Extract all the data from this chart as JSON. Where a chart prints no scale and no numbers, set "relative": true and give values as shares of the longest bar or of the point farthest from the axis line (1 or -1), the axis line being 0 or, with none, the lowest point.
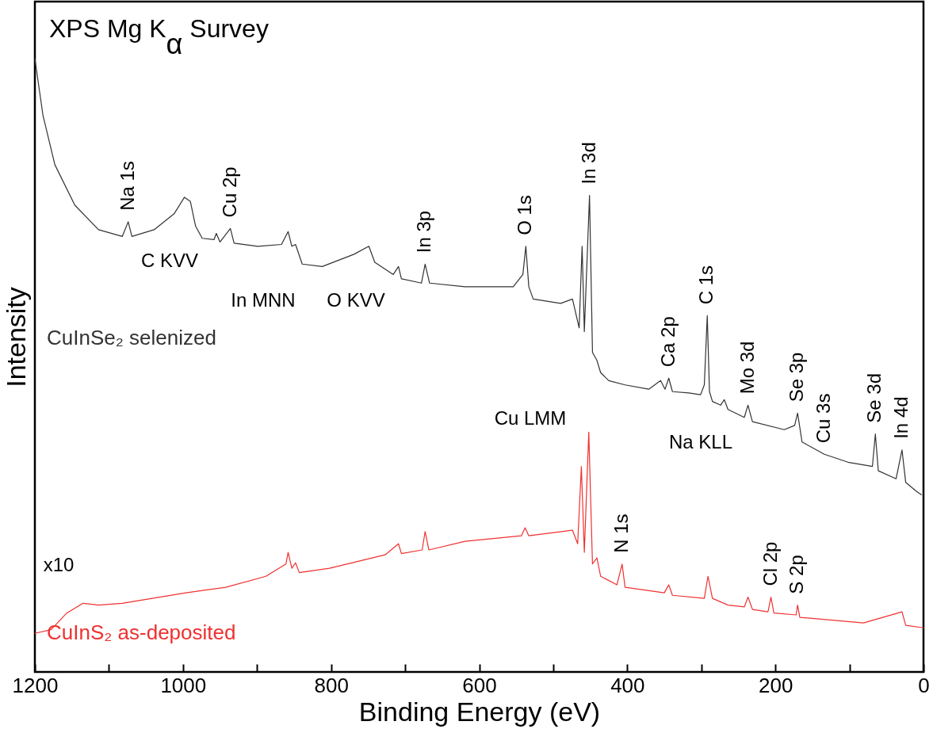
{
  "chart_data": {
    "type": "line",
    "title": "XPS Mg K$_{α}$ Survey",
    "xlabel": "Binding Energy (eV)",
    "ylabel": "Intensity",
    "relative": true,
    "xlim": [
      1200,
      0
    ],
    "xticks": [
      1200,
      {
        "value": 1100,
        "label": null
      },
      1000,
      {
        "value": 900,
        "label": null
      },
      800,
      {
        "value": 700,
        "label": null
      },
      600,
      {
        "value": 500,
        "label": null
      },
      400,
      {
        "value": 300,
        "label": null
      },
      200,
      {
        "value": 100,
        "label": null
      },
      0
    ],
    "series": [
      {
        "name": "CuInSe₂ selenized",
        "color": "#333333",
        "x": [
          1200,
          1189,
          1173,
          1146,
          1114,
          1082,
          1074,
          1069,
          1039,
          1012,
          998,
          990,
          983,
          974,
          958,
          955,
          950,
          936,
          931,
          899,
          867,
          858,
          853,
          848,
          839,
          812,
          769,
          749,
          741,
          716,
          709,
          705,
          678,
          673,
          667,
          619,
          554,
          541,
          537,
          533,
          527,
          490,
          474,
          465,
          461,
          458,
          451,
          447,
          441,
          436,
          425,
          403,
          371,
          355,
          349,
          344,
          339,
          317,
          301,
          296,
          292,
          289,
          285,
          274,
          269,
          264,
          242,
          237,
          231,
          188,
          174,
          170,
          164,
          134,
          102,
          69,
          65,
          61,
          37,
          29,
          24,
          10,
          3
        ],
        "values": [
          1.0,
          0.907,
          0.827,
          0.761,
          0.721,
          0.71,
          0.734,
          0.71,
          0.721,
          0.747,
          0.774,
          0.767,
          0.727,
          0.707,
          0.705,
          0.715,
          0.701,
          0.723,
          0.699,
          0.694,
          0.697,
          0.718,
          0.694,
          0.697,
          0.665,
          0.661,
          0.681,
          0.694,
          0.668,
          0.648,
          0.661,
          0.641,
          0.634,
          0.665,
          0.634,
          0.628,
          0.628,
          0.648,
          0.694,
          0.628,
          0.608,
          0.601,
          0.608,
          0.561,
          0.694,
          0.555,
          0.777,
          0.521,
          0.508,
          0.488,
          0.475,
          0.468,
          0.461,
          0.475,
          0.461,
          0.479,
          0.457,
          0.455,
          0.452,
          0.468,
          0.581,
          0.457,
          0.441,
          0.435,
          0.444,
          0.428,
          0.415,
          0.435,
          0.408,
          0.395,
          0.402,
          0.422,
          0.375,
          0.355,
          0.342,
          0.335,
          0.388,
          0.328,
          0.315,
          0.362,
          0.309,
          0.295,
          0.289
        ]
      },
      {
        "name": "CuInS₂ as-deposited",
        "color": "#f03030",
        "x": [
          1200,
          1178,
          1157,
          1135,
          1114,
          1082,
          996,
          942,
          888,
          861,
          858,
          853,
          848,
          843,
          802,
          727,
          709,
          705,
          677,
          673,
          668,
          619,
          543,
          538,
          533,
          474,
          467,
          462,
          458,
          452,
          447,
          441,
          436,
          414,
          407,
          403,
          350,
          344,
          339,
          296,
          291,
          285,
          264,
          242,
          237,
          231,
          210,
          206,
          202,
          172,
          170,
          167,
          81,
          29,
          24,
          0
        ],
        "values": [
          0.063,
          0.069,
          0.096,
          0.112,
          0.109,
          0.112,
          0.129,
          0.138,
          0.156,
          0.176,
          0.195,
          0.169,
          0.178,
          0.162,
          0.169,
          0.191,
          0.209,
          0.193,
          0.199,
          0.229,
          0.199,
          0.213,
          0.222,
          0.235,
          0.222,
          0.231,
          0.209,
          0.335,
          0.195,
          0.391,
          0.176,
          0.186,
          0.156,
          0.142,
          0.176,
          0.138,
          0.129,
          0.142,
          0.125,
          0.12,
          0.156,
          0.12,
          0.109,
          0.106,
          0.122,
          0.102,
          0.098,
          0.122,
          0.096,
          0.093,
          0.109,
          0.089,
          0.08,
          0.098,
          0.076,
          0.072
        ]
      }
    ],
    "annotations": [
      "x10",
      "C KVV",
      "In MNN",
      "O KVV",
      "Cu LMM",
      "Na KLL",
      {
        "text": "Na 1s",
        "x": 1074,
        "y": 0.734
      },
      {
        "text": "Cu 2p",
        "x": 936,
        "y": 0.723
      },
      {
        "text": "In 3p",
        "x": 673,
        "y": 0.665
      },
      {
        "text": "O 1s",
        "x": 537,
        "y": 0.694
      },
      {
        "text": "In 3d",
        "x": 451,
        "y": 0.777
      },
      {
        "text": "Ca 2p",
        "x": 344,
        "y": 0.479
      },
      {
        "text": "C 1s",
        "x": 292,
        "y": 0.581
      },
      {
        "text": "Mo 3d",
        "x": 237,
        "y": 0.435
      },
      {
        "text": "Se 3p",
        "x": 170,
        "y": 0.422
      },
      {
        "text": "Cu 3s",
        "x": 134,
        "y": 0.355
      },
      {
        "text": "Se 3d",
        "x": 65,
        "y": 0.388
      },
      {
        "text": "In 4d",
        "x": 29,
        "y": 0.362
      },
      {
        "text": "N 1s",
        "x": 407,
        "y": 0.176
      },
      {
        "text": "Cl 2p",
        "x": 206,
        "y": 0.122
      },
      {
        "text": "S 2p",
        "x": 170,
        "y": 0.109
      }
    ]
  }
}
